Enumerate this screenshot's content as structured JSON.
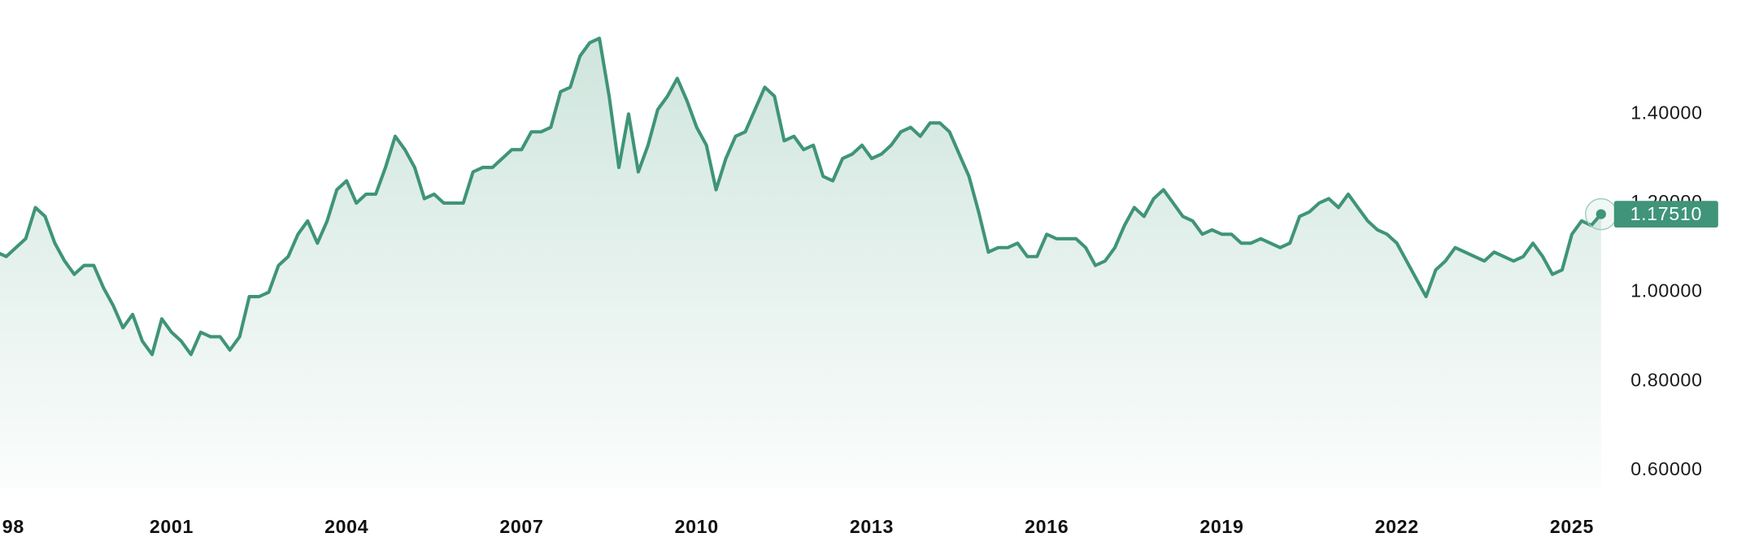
{
  "chart_data": {
    "type": "area",
    "x": [
      1998,
      1998.167,
      1998.333,
      1998.5,
      1998.667,
      1998.833,
      1999,
      1999.167,
      1999.333,
      1999.5,
      1999.667,
      1999.833,
      2000,
      2000.167,
      2000.333,
      2000.5,
      2000.667,
      2000.833,
      2001,
      2001.167,
      2001.333,
      2001.5,
      2001.667,
      2001.833,
      2002,
      2002.167,
      2002.333,
      2002.5,
      2002.667,
      2002.833,
      2003,
      2003.167,
      2003.333,
      2003.5,
      2003.667,
      2003.833,
      2004,
      2004.167,
      2004.333,
      2004.5,
      2004.667,
      2004.833,
      2005,
      2005.167,
      2005.333,
      2005.5,
      2005.667,
      2005.833,
      2006,
      2006.167,
      2006.333,
      2006.5,
      2006.667,
      2006.833,
      2007,
      2007.167,
      2007.333,
      2007.5,
      2007.667,
      2007.833,
      2008,
      2008.167,
      2008.333,
      2008.5,
      2008.667,
      2008.833,
      2009,
      2009.167,
      2009.333,
      2009.5,
      2009.667,
      2009.833,
      2010,
      2010.167,
      2010.333,
      2010.5,
      2010.667,
      2010.833,
      2011,
      2011.167,
      2011.333,
      2011.5,
      2011.667,
      2011.833,
      2012,
      2012.167,
      2012.333,
      2012.5,
      2012.667,
      2012.833,
      2013,
      2013.167,
      2013.333,
      2013.5,
      2013.667,
      2013.833,
      2014,
      2014.167,
      2014.333,
      2014.5,
      2014.667,
      2014.833,
      2015,
      2015.167,
      2015.333,
      2015.5,
      2015.667,
      2015.833,
      2016,
      2016.167,
      2016.333,
      2016.5,
      2016.667,
      2016.833,
      2017,
      2017.167,
      2017.333,
      2017.5,
      2017.667,
      2017.833,
      2018,
      2018.167,
      2018.333,
      2018.5,
      2018.667,
      2018.833,
      2019,
      2019.167,
      2019.333,
      2019.5,
      2019.667,
      2019.833,
      2020,
      2020.167,
      2020.333,
      2020.5,
      2020.667,
      2020.833,
      2021,
      2021.167,
      2021.333,
      2021.5,
      2021.667,
      2021.833,
      2022,
      2022.167,
      2022.333,
      2022.5,
      2022.667,
      2022.833,
      2023,
      2023.167,
      2023.333,
      2023.5,
      2023.667,
      2023.833,
      2024,
      2024.167,
      2024.333,
      2024.5,
      2024.667,
      2024.833,
      2025,
      2025.167,
      2025.333,
      2025.5
    ],
    "values": [
      1.09,
      1.08,
      1.1,
      1.12,
      1.19,
      1.17,
      1.11,
      1.07,
      1.04,
      1.06,
      1.06,
      1.01,
      0.97,
      0.92,
      0.95,
      0.89,
      0.86,
      0.94,
      0.91,
      0.89,
      0.86,
      0.91,
      0.9,
      0.9,
      0.87,
      0.9,
      0.99,
      0.99,
      1.0,
      1.06,
      1.08,
      1.13,
      1.16,
      1.11,
      1.16,
      1.23,
      1.25,
      1.2,
      1.22,
      1.22,
      1.28,
      1.35,
      1.32,
      1.28,
      1.21,
      1.22,
      1.2,
      1.2,
      1.2,
      1.27,
      1.28,
      1.28,
      1.3,
      1.32,
      1.32,
      1.36,
      1.36,
      1.37,
      1.45,
      1.46,
      1.53,
      1.56,
      1.57,
      1.44,
      1.28,
      1.4,
      1.27,
      1.33,
      1.41,
      1.44,
      1.48,
      1.43,
      1.37,
      1.33,
      1.23,
      1.3,
      1.35,
      1.36,
      1.41,
      1.46,
      1.44,
      1.34,
      1.35,
      1.32,
      1.33,
      1.26,
      1.25,
      1.3,
      1.31,
      1.33,
      1.3,
      1.31,
      1.33,
      1.36,
      1.37,
      1.35,
      1.38,
      1.38,
      1.36,
      1.31,
      1.26,
      1.18,
      1.09,
      1.1,
      1.1,
      1.11,
      1.08,
      1.08,
      1.13,
      1.12,
      1.12,
      1.12,
      1.1,
      1.06,
      1.07,
      1.1,
      1.15,
      1.19,
      1.17,
      1.21,
      1.23,
      1.2,
      1.17,
      1.16,
      1.13,
      1.14,
      1.13,
      1.13,
      1.11,
      1.11,
      1.12,
      1.11,
      1.1,
      1.11,
      1.17,
      1.18,
      1.2,
      1.21,
      1.19,
      1.22,
      1.19,
      1.16,
      1.14,
      1.13,
      1.11,
      1.07,
      1.03,
      0.99,
      1.05,
      1.07,
      1.1,
      1.09,
      1.08,
      1.07,
      1.09,
      1.08,
      1.07,
      1.08,
      1.11,
      1.08,
      1.04,
      1.05,
      1.13,
      1.16,
      1.15,
      1.1751
    ],
    "color": "#3f9479",
    "marker": {
      "value": 1.1751,
      "label": "1.17510"
    },
    "xlim": [
      1998.06,
      2027.83
    ],
    "xticks": [
      {
        "value": 1998,
        "label": "98"
      },
      2001,
      2004,
      2007,
      2010,
      2013,
      2016,
      2019,
      2022,
      2025
    ],
    "ylim": [
      0.56,
      1.6
    ],
    "yticks": [
      {
        "value": 0.6,
        "label": "0.60000"
      },
      {
        "value": 0.8,
        "label": "0.80000"
      },
      {
        "value": 1,
        "label": "1.00000"
      },
      {
        "value": 1.2,
        "label": "1.20000"
      },
      {
        "value": 1.4,
        "label": "1.40000"
      }
    ]
  }
}
